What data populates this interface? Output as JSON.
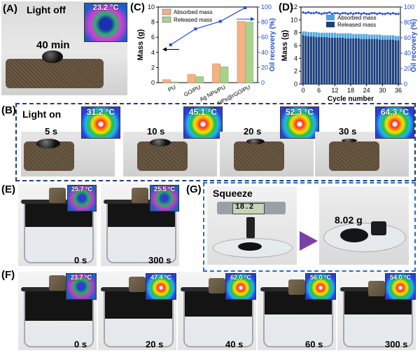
{
  "panelA": {
    "label": "(A)",
    "title": "Light off",
    "time": "40 min",
    "temp": "23.2 °C"
  },
  "panelC": {
    "label": "(C)",
    "legend": [
      "Absorbed mass",
      "Released mass"
    ],
    "colors": {
      "absorbed": "#f4b183",
      "released": "#a9d18e",
      "recovery": "#1f4fd6"
    }
  },
  "panelD": {
    "label": "(D)",
    "legend": [
      "Absorbed mass",
      "Released mass"
    ],
    "colors": {
      "absorbed": "#4aa3e0",
      "released": "#1f3f7a",
      "recovery": "#1f4fd6"
    }
  },
  "chart_data": [
    {
      "type": "bar",
      "title": "",
      "categories": [
        "PU",
        "GO/PU",
        "Ag NPs/PU",
        "Ag NPs@rGO/PU"
      ],
      "series": [
        {
          "name": "Absorbed mass",
          "values": [
            0.4,
            1.1,
            2.5,
            8.1
          ]
        },
        {
          "name": "Released mass",
          "values": [
            0.1,
            0.8,
            2.1,
            8.0
          ]
        }
      ],
      "line": {
        "name": "Oil recovery",
        "values": [
          50,
          71,
          81,
          99
        ]
      },
      "ylabel": "Mass (g)",
      "ylim": [
        0,
        10
      ],
      "yticks": [
        0,
        2,
        4,
        6,
        8,
        10
      ],
      "y2label": "Oil recovery (%)",
      "y2lim": [
        0,
        100
      ],
      "y2ticks": [
        0,
        20,
        40,
        60,
        80,
        100
      ]
    },
    {
      "type": "bar",
      "title": "",
      "categories": [
        0,
        1,
        2,
        3,
        4,
        5,
        6,
        7,
        8,
        9,
        10,
        11,
        12,
        13,
        14,
        15,
        16,
        17,
        18,
        19,
        20,
        21,
        22,
        23,
        24,
        25,
        26,
        27,
        28,
        29,
        30,
        31,
        32,
        33,
        34,
        35,
        36
      ],
      "series": [
        {
          "name": "Absorbed mass",
          "values": [
            8.2,
            8.2,
            8.1,
            8.1,
            8.1,
            8.1,
            8.0,
            8.0,
            8.0,
            8.0,
            8.0,
            8.0,
            8.0,
            7.9,
            7.9,
            7.9,
            7.9,
            7.9,
            7.9,
            7.8,
            7.8,
            7.8,
            7.8,
            7.8,
            7.8,
            7.7,
            7.7,
            7.7,
            7.7,
            7.7,
            7.6,
            7.6,
            7.6,
            7.6,
            7.6,
            7.5,
            7.5
          ]
        },
        {
          "name": "Released mass",
          "values": [
            7.6,
            7.5,
            7.4,
            7.4,
            7.4,
            7.3,
            7.3,
            7.3,
            7.3,
            7.3,
            7.2,
            7.2,
            7.2,
            7.2,
            7.2,
            7.2,
            7.1,
            7.1,
            7.1,
            7.1,
            7.1,
            7.1,
            7.0,
            7.0,
            7.0,
            7.0,
            7.0,
            7.0,
            7.0,
            6.9,
            6.9,
            6.9,
            6.9,
            6.9,
            6.9,
            6.8,
            6.8
          ]
        }
      ],
      "line": {
        "name": "Oil recovery",
        "values": [
          93,
          92,
          93,
          92,
          92,
          93,
          92,
          91,
          92,
          92,
          93,
          91,
          92,
          92,
          91,
          92,
          92,
          91,
          92,
          91,
          92,
          92,
          91,
          92,
          91,
          91,
          92,
          92,
          91,
          92,
          91,
          91,
          92,
          91,
          92,
          91,
          91
        ]
      },
      "xlabel": "Cycle number",
      "xticks": [
        0,
        6,
        12,
        18,
        24,
        30,
        36
      ],
      "ylabel": "Mass (g)",
      "ylim": [
        0,
        12
      ],
      "yticks": [
        0,
        2,
        4,
        6,
        8,
        10,
        12
      ],
      "y2label": "Oil recovery (%)",
      "y2lim": [
        0,
        100
      ],
      "y2ticks": [
        0,
        20,
        40,
        60,
        80,
        100
      ]
    }
  ],
  "panelB": {
    "label": "(B)",
    "title": "Light on",
    "frames": [
      {
        "time": "5 s",
        "temp": "31.2 °C"
      },
      {
        "time": "10 s",
        "temp": "45.1 °C"
      },
      {
        "time": "20 s",
        "temp": "52.3 °C"
      },
      {
        "time": "30 s",
        "temp": "64.3 °C"
      }
    ]
  },
  "panelE": {
    "label": "(E)",
    "frames": [
      {
        "time": "0 s",
        "temp": "25.7 °C"
      },
      {
        "time": "300 s",
        "temp": "25.5 °C"
      }
    ]
  },
  "panelG": {
    "label": "(G)",
    "title": "Squeeze",
    "caliper": "18.2",
    "mass": "8.02 g"
  },
  "panelF": {
    "label": "(F)",
    "frames": [
      {
        "time": "0 s",
        "temp": "23.7 °C"
      },
      {
        "time": "20 s",
        "temp": "47.4 °C"
      },
      {
        "time": "40 s",
        "temp": "62.0 °C"
      },
      {
        "time": "60 s",
        "temp": "56.0 °C"
      },
      {
        "time": "300 s",
        "temp": "54.0 °C"
      }
    ]
  }
}
